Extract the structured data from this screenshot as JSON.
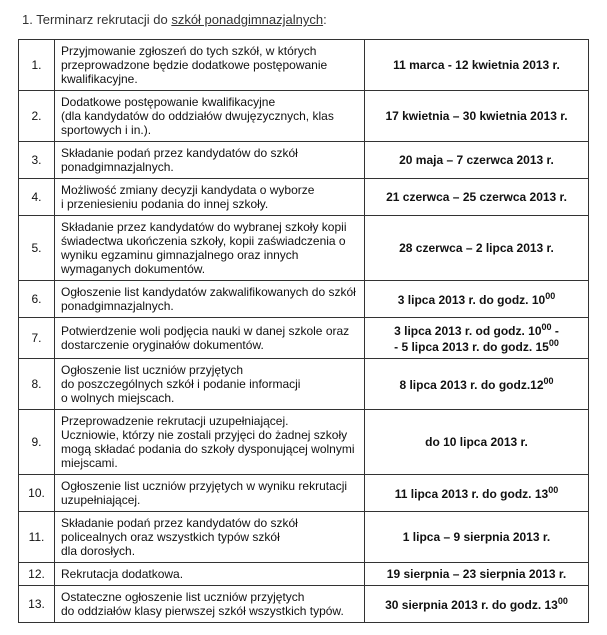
{
  "heading": {
    "prefix": "1. Terminarz rekrutacji  do ",
    "underlined": "szkół ponadgimnazjalnych",
    "suffix": ":"
  },
  "rows": [
    {
      "num": "1.",
      "desc": "Przyjmowanie zgłoszeń do tych szkół, w których przeprowadzone będzie dodatkowe postępowanie kwalifikacyjne.",
      "date_html": "11 marca - 12 kwietnia 2013 r."
    },
    {
      "num": "2.",
      "desc": "Dodatkowe postępowanie kwalifikacyjne<br>(dla kandydatów do oddziałów dwujęzycznych, klas sportowych i in.).",
      "date_html": "17 kwietnia – 30 kwietnia 2013 r."
    },
    {
      "num": "3.",
      "desc": "Składanie podań przez kandydatów do szkół ponadgimnazjalnych.",
      "date_html": "20 maja – 7 czerwca 2013 r."
    },
    {
      "num": "4.",
      "desc": "Możliwość zmiany decyzji kandydata o wyborze<br>i przeniesieniu podania do innej szkoły.",
      "date_html": "21 czerwca – 25 czerwca 2013 r."
    },
    {
      "num": "5.",
      "desc": "Składanie przez kandydatów do wybranej szkoły kopii świadectwa ukończenia szkoły, kopii zaświadczenia o wyniku egzaminu gimnazjalnego oraz innych wymaganych dokumentów.",
      "date_html": "28 czerwca – 2 lipca 2013 r."
    },
    {
      "num": "6.",
      "desc": "Ogłoszenie list kandydatów zakwalifikowanych do szkół ponadgimnazjalnych.",
      "date_html": "3 lipca 2013 r. do godz. 10<sup>00</sup>"
    },
    {
      "num": "7.",
      "desc": "Potwierdzenie woli podjęcia nauki w danej szkole oraz dostarczenie oryginałów dokumentów.",
      "date_html": "3 lipca 2013 r. od godz. 10<sup>00</sup> -<br>- 5 lipca 2013 r. do godz. 15<sup>00</sup>"
    },
    {
      "num": "8.",
      "desc": "Ogłoszenie list uczniów przyjętych<br>do poszczególnych szkół i podanie informacji<br>o wolnych miejscach.",
      "date_html": "8 lipca 2013 r. do godz.12<sup>00</sup>"
    },
    {
      "num": "9.",
      "desc": "Przeprowadzenie rekrutacji uzupełniającej.<br>Uczniowie, którzy nie zostali przyjęci do żadnej szkoły mogą składać podania do szkoły dysponującej wolnymi miejscami.",
      "date_html": "do  10 lipca  2013 r."
    },
    {
      "num": "10.",
      "desc": "Ogłoszenie list uczniów przyjętych w wyniku rekrutacji uzupełniającej.",
      "date_html": "11 lipca  2013 r. do godz. 13<sup>00</sup>"
    },
    {
      "num": "11.",
      "desc": "Składanie podań przez kandydatów do szkół policealnych oraz wszystkich typów szkół<br>dla dorosłych.",
      "date_html": "1 lipca – 9 sierpnia 2013 r."
    },
    {
      "num": "12.",
      "desc": "Rekrutacja dodatkowa.",
      "date_html": "19 sierpnia – 23 sierpnia 2013 r."
    },
    {
      "num": "13.",
      "desc": "Ostateczne ogłoszenie list uczniów przyjętych<br>do oddziałów klasy pierwszej szkół wszystkich typów.",
      "date_html": "30 sierpnia 2013 r. do godz. 13<sup>00</sup>"
    }
  ]
}
